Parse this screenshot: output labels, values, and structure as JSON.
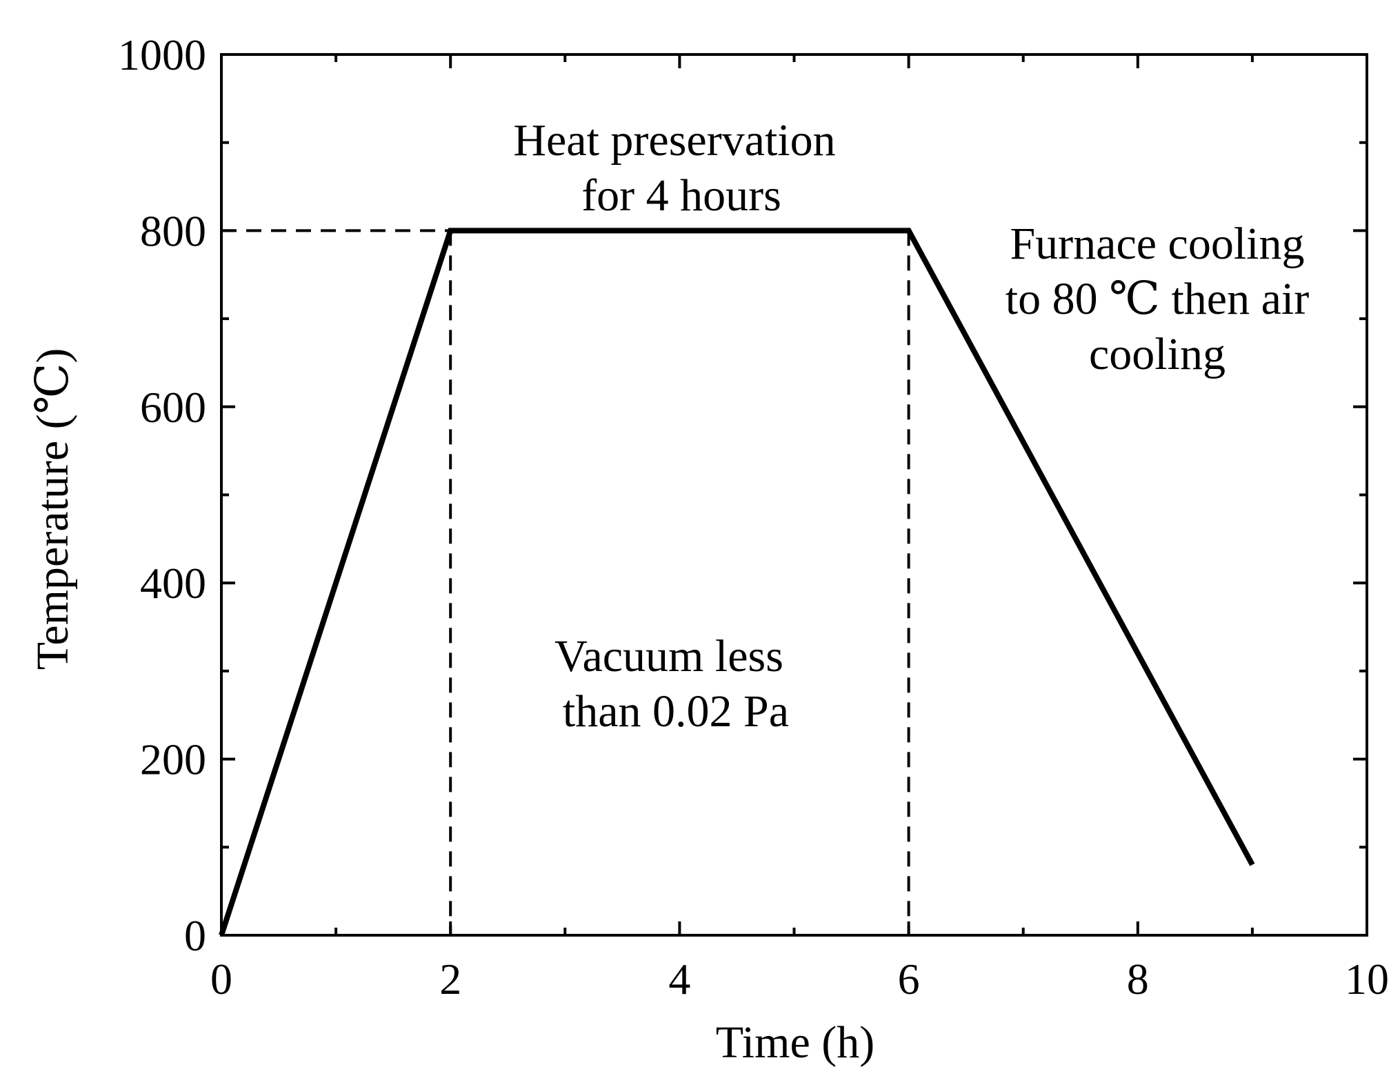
{
  "chart_data": {
    "type": "line",
    "xlabel": "Time (h)",
    "ylabel": "Temperature (℃)",
    "xlim": [
      0,
      10
    ],
    "ylim": [
      0,
      1000
    ],
    "x_ticks": [
      "0",
      "2",
      "4",
      "6",
      "8",
      "10"
    ],
    "y_ticks": [
      "0",
      "200",
      "400",
      "600",
      "800",
      "1000"
    ],
    "grid": false,
    "series": [
      {
        "x": [
          0,
          2,
          6,
          9
        ],
        "y": [
          0,
          800,
          800,
          80
        ]
      }
    ],
    "reference_lines": {
      "horizontal_y": 800,
      "vertical_x": [
        2,
        6
      ]
    },
    "annotations": {
      "heat_line1": "Heat preservation",
      "heat_line2": "for 4 hours",
      "vacuum_line1": "Vacuum less",
      "vacuum_line2": "than 0.02 Pa",
      "cooling_line1": "Furnace cooling",
      "cooling_line2": "to 80 ℃ then air",
      "cooling_line3": "cooling"
    },
    "colors": {
      "line": "#000000",
      "background": "#ffffff"
    }
  }
}
